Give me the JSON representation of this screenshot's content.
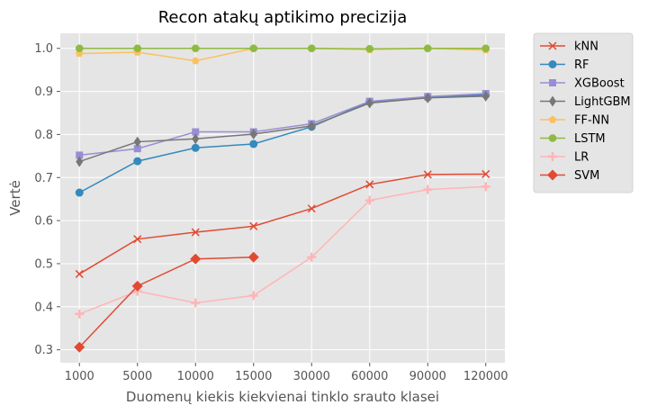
{
  "chart_data": {
    "type": "line",
    "title": "Recon atakų aptikimo precizija",
    "xlabel": "Duomenų kiekis kiekvienai tinklo srauto klasei",
    "ylabel": "Vertė",
    "categories": [
      "1000",
      "5000",
      "10000",
      "15000",
      "30000",
      "60000",
      "90000",
      "120000"
    ],
    "ylim": [
      0.27,
      1.035
    ],
    "yticks": [
      0.3,
      0.4,
      0.5,
      0.6,
      0.7,
      0.8,
      0.9,
      1.0
    ],
    "ytick_labels": [
      "0.3",
      "0.4",
      "0.5",
      "0.6",
      "0.7",
      "0.8",
      "0.9",
      "1.0"
    ],
    "grid": true,
    "legend_position": "outside-right-top",
    "series": [
      {
        "name": "kNN",
        "color": "#E24A33",
        "marker": "x",
        "values": [
          0.476,
          0.557,
          0.573,
          0.587,
          0.628,
          0.684,
          0.707,
          0.708
        ]
      },
      {
        "name": "RF",
        "color": "#348ABD",
        "marker": "circle",
        "values": [
          0.665,
          0.738,
          0.769,
          0.778,
          0.818,
          0.876,
          0.886,
          0.892
        ]
      },
      {
        "name": "XGBoost",
        "color": "#988ED5",
        "marker": "square",
        "values": [
          0.752,
          0.767,
          0.806,
          0.806,
          0.825,
          0.877,
          0.888,
          0.895
        ]
      },
      {
        "name": "LightGBM",
        "color": "#777777",
        "marker": "thin-diamond",
        "values": [
          0.737,
          0.783,
          0.79,
          0.801,
          0.82,
          0.873,
          0.885,
          0.889
        ]
      },
      {
        "name": "FF-NN",
        "color": "#FBC15E",
        "marker": "pentagon",
        "values": [
          0.988,
          0.991,
          0.971,
          1.0,
          1.0,
          0.997,
          1.0,
          0.996
        ]
      },
      {
        "name": "LSTM",
        "color": "#8EBA42",
        "marker": "octagon",
        "values": [
          1.0,
          1.0,
          1.0,
          1.0,
          1.0,
          0.999,
          1.0,
          1.0
        ]
      },
      {
        "name": "LR",
        "color": "#FFB5B8",
        "marker": "plus",
        "values": [
          0.383,
          0.436,
          0.409,
          0.426,
          0.515,
          0.647,
          0.672,
          0.679
        ]
      },
      {
        "name": "SVM",
        "color": "#E24A33",
        "marker": "diamond",
        "values": [
          0.306,
          0.448,
          0.511,
          0.515,
          null,
          null,
          null,
          null
        ]
      }
    ]
  }
}
